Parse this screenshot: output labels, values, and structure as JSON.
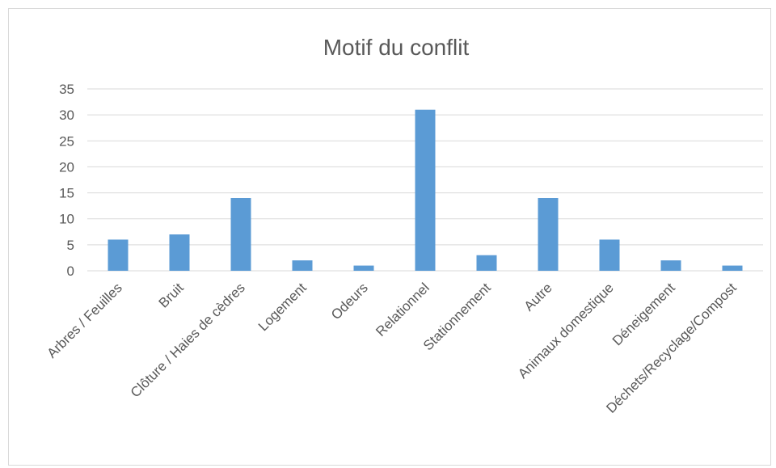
{
  "chart_data": {
    "type": "bar",
    "title": "Motif du conflit",
    "xlabel": "",
    "ylabel": "",
    "categories": [
      "Arbres / Feuilles",
      "Bruit",
      "Clôture / Haies de cèdres",
      "Logement",
      "Odeurs",
      "Relationnel",
      "Stationnement",
      "Autre",
      "Animaux domestique",
      "Déneigement",
      "Déchets/Recyclage/Compost"
    ],
    "values": [
      6,
      7,
      14,
      2,
      1,
      31,
      3,
      14,
      6,
      2,
      1
    ],
    "ylim": [
      0,
      35
    ],
    "yticks": [
      0,
      5,
      10,
      15,
      20,
      25,
      30,
      35
    ],
    "grid": true,
    "legend": "none",
    "colors": {
      "bar": "#5b9bd5",
      "grid": "#d9d9d9",
      "text": "#595959",
      "border": "#d9d9d9"
    }
  }
}
